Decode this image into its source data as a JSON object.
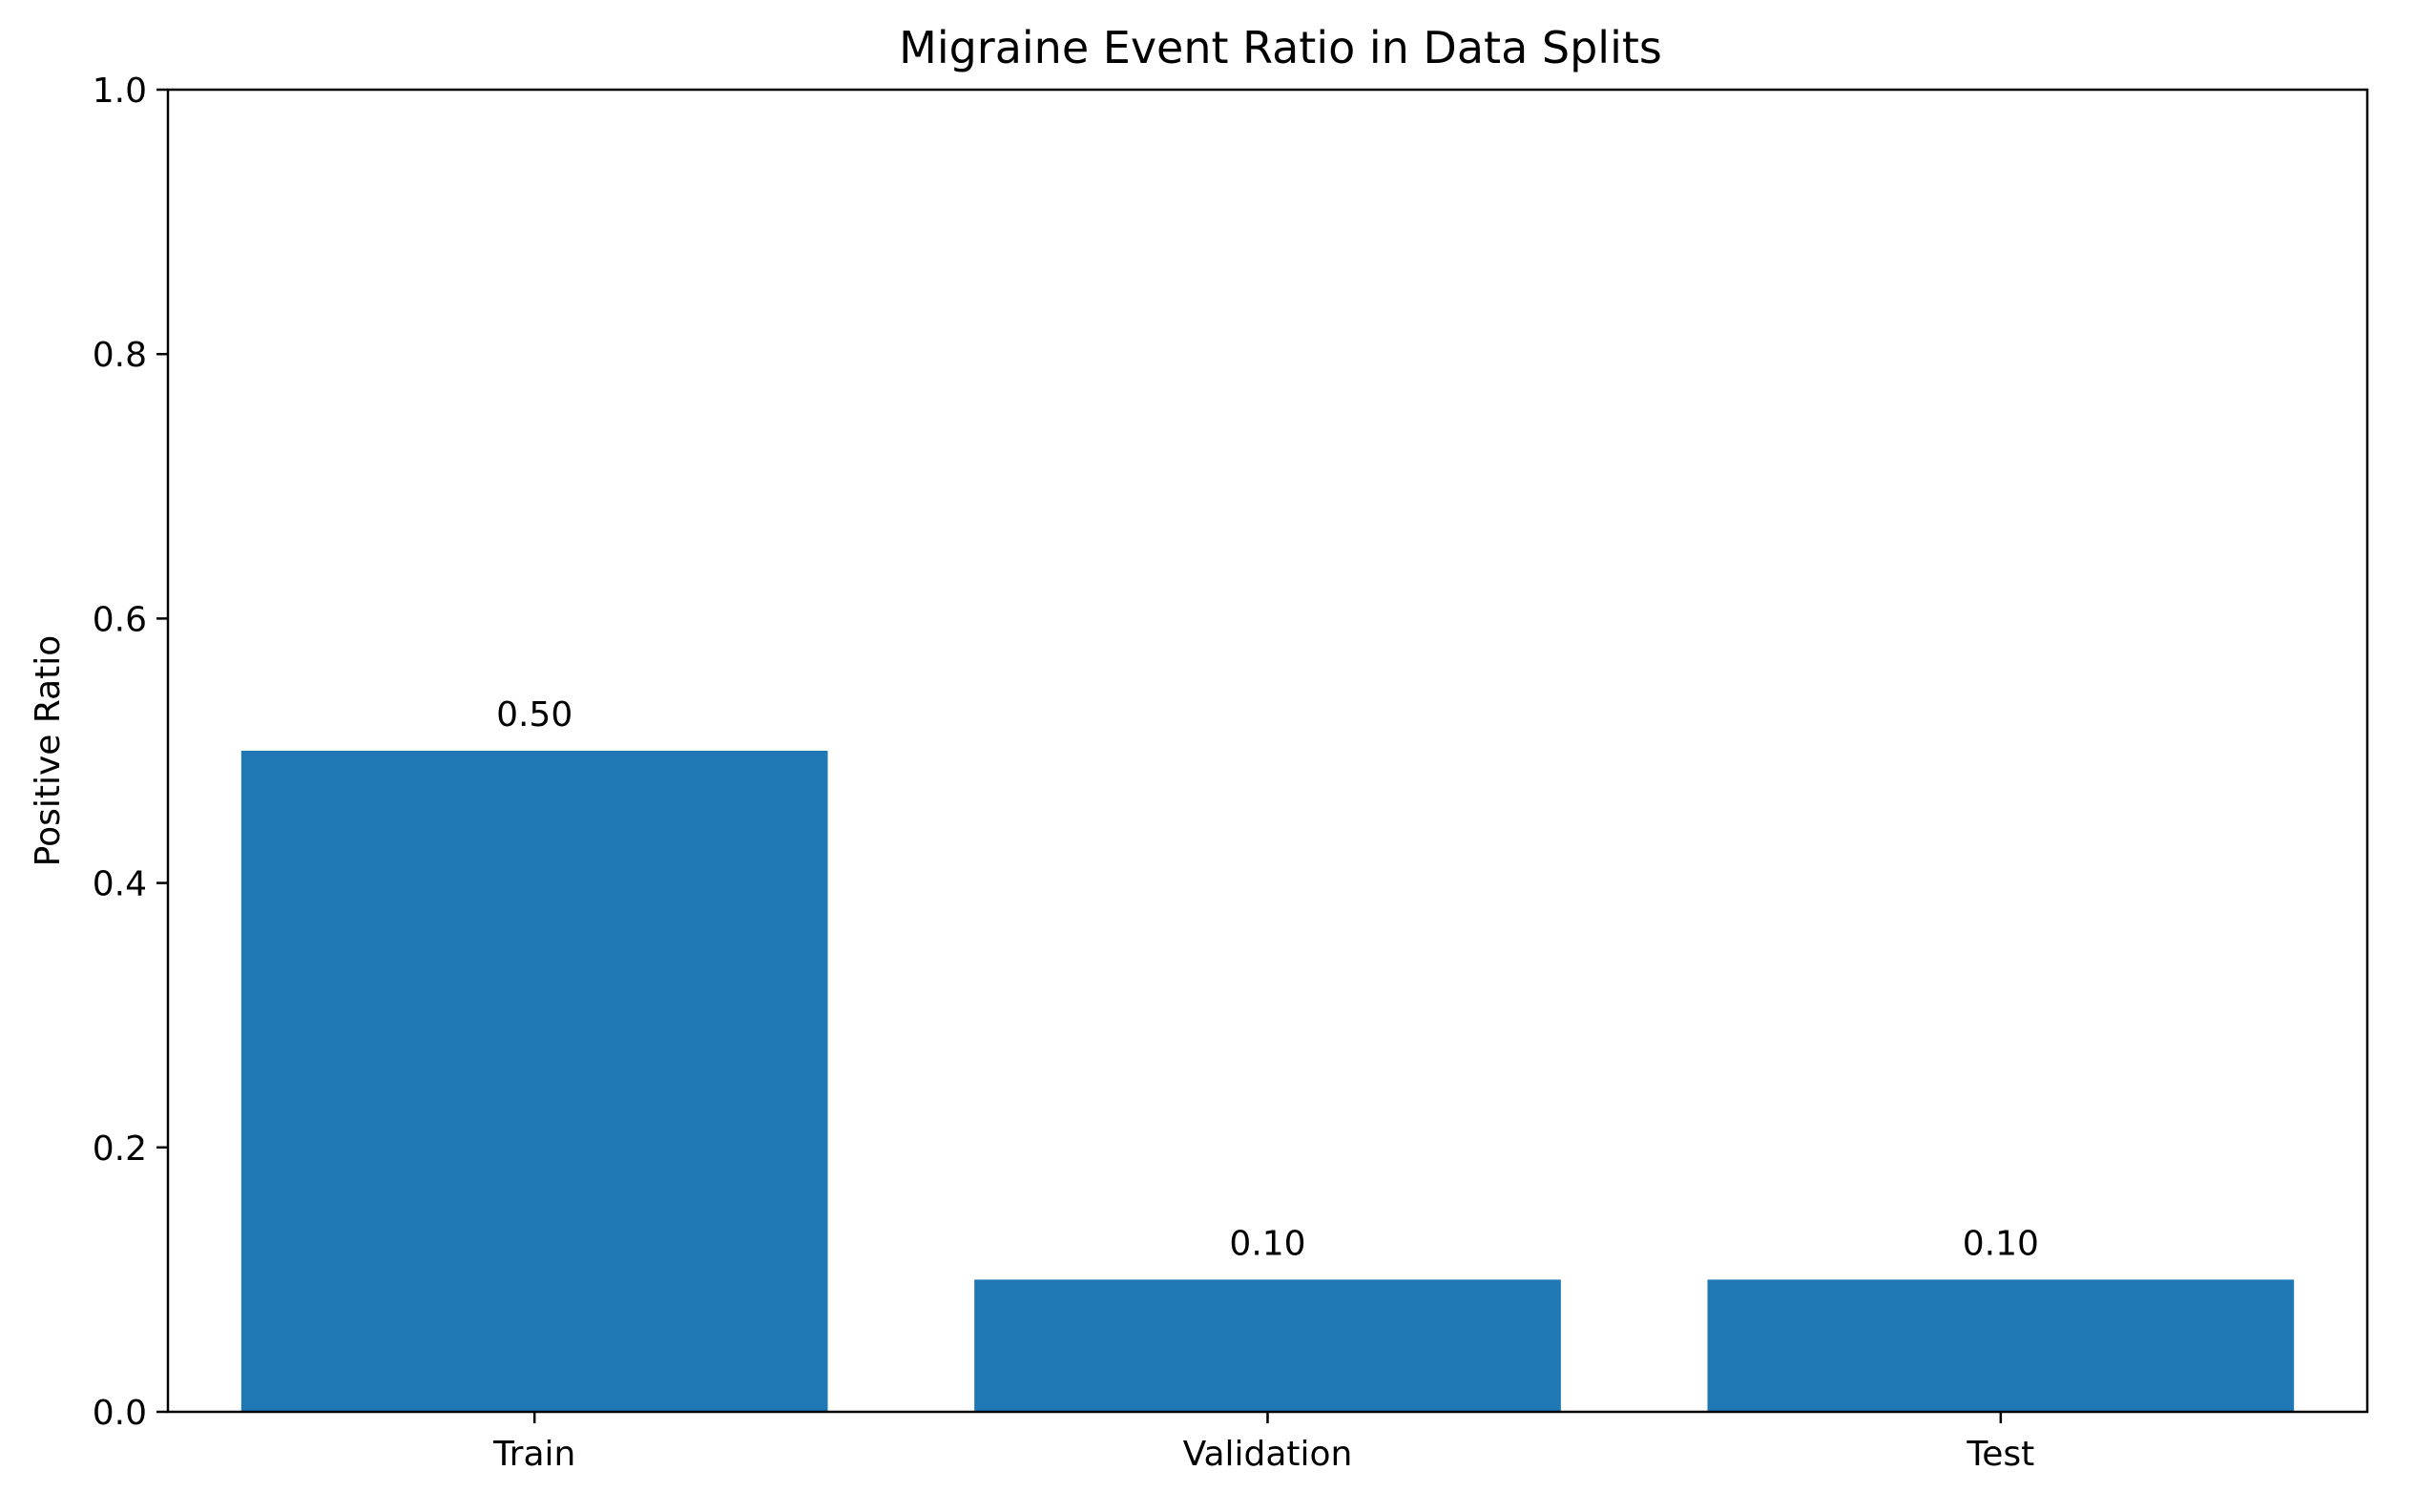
{
  "chart_data": {
    "type": "bar",
    "title": "Migraine Event Ratio in Data Splits",
    "xlabel": "",
    "ylabel": "Positive Ratio",
    "categories": [
      "Train",
      "Validation",
      "Test"
    ],
    "values": [
      0.5,
      0.1,
      0.1
    ],
    "data_labels": [
      "0.50",
      "0.10",
      "0.10"
    ],
    "ylim": [
      0,
      1.0
    ],
    "yticks": [
      {
        "value": 0.0,
        "label": "0.0"
      },
      {
        "value": 0.2,
        "label": "0.2"
      },
      {
        "value": 0.4,
        "label": "0.4"
      },
      {
        "value": 0.6,
        "label": "0.6"
      },
      {
        "value": 0.8,
        "label": "0.8"
      },
      {
        "value": 1.0,
        "label": "1.0"
      }
    ],
    "grid": false,
    "legend": "none",
    "bar_color": "#1f77b4"
  }
}
